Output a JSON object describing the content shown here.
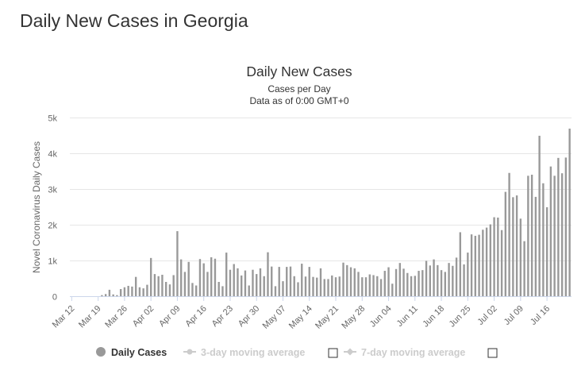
{
  "page": {
    "heading": "Daily New Cases in Georgia"
  },
  "chart_data": {
    "type": "bar",
    "title": "Daily New Cases",
    "subtitle_line1": "Cases per Day",
    "subtitle_line2": "Data as of 0:00 GMT+0",
    "xlabel": "",
    "ylabel": "Novel Coronavirus Daily Cases",
    "ylim": [
      0,
      5000
    ],
    "yticks": [
      0,
      1000,
      2000,
      3000,
      4000,
      5000
    ],
    "ytick_labels": [
      "0",
      "1k",
      "2k",
      "3k",
      "4k",
      "5k"
    ],
    "xtick_labels": [
      "Mar 12",
      "Mar 19",
      "Mar 26",
      "Apr 02",
      "Apr 09",
      "Apr 16",
      "Apr 23",
      "Apr 30",
      "May 07",
      "May 14",
      "May 21",
      "May 28",
      "Jun 04",
      "Jun 11",
      "Jun 18",
      "Jun 25",
      "Jul 02",
      "Jul 09",
      "Jul 16"
    ],
    "start_label": "Mar 12",
    "grid": true,
    "bar_color": "#999999",
    "series": [
      {
        "name": "Daily Cases",
        "values": [
          0,
          0,
          0,
          0,
          0,
          0,
          0,
          0,
          30,
          60,
          180,
          50,
          30,
          200,
          250,
          290,
          270,
          540,
          250,
          220,
          320,
          1070,
          620,
          560,
          600,
          400,
          330,
          590,
          1820,
          1030,
          680,
          960,
          370,
          300,
          1040,
          920,
          680,
          1090,
          1050,
          400,
          280,
          1220,
          740,
          900,
          780,
          580,
          720,
          300,
          740,
          620,
          780,
          560,
          1230,
          830,
          280,
          820,
          420,
          820,
          830,
          560,
          390,
          910,
          550,
          820,
          540,
          520,
          780,
          480,
          480,
          580,
          530,
          550,
          940,
          870,
          810,
          780,
          680,
          530,
          530,
          610,
          590,
          560,
          480,
          710,
          810,
          350,
          760,
          930,
          770,
          650,
          560,
          570,
          710,
          730,
          990,
          860,
          1030,
          870,
          730,
          680,
          930,
          850,
          1080,
          1790,
          890,
          1220,
          1730,
          1690,
          1720,
          1860,
          1920,
          2010,
          2210,
          2200,
          1850,
          2920,
          3450,
          2770,
          2820,
          2170,
          1540,
          3370,
          3400,
          2780,
          4490,
          3160,
          2490,
          3630,
          3370,
          3870,
          3440,
          3880,
          4690
        ]
      },
      {
        "name": "3-day moving average",
        "visible": false
      },
      {
        "name": "7-day moving average",
        "visible": false
      }
    ],
    "legend": [
      "Daily Cases",
      "3-day moving average",
      "7-day moving average"
    ],
    "legend_placement": "bottom-center"
  }
}
